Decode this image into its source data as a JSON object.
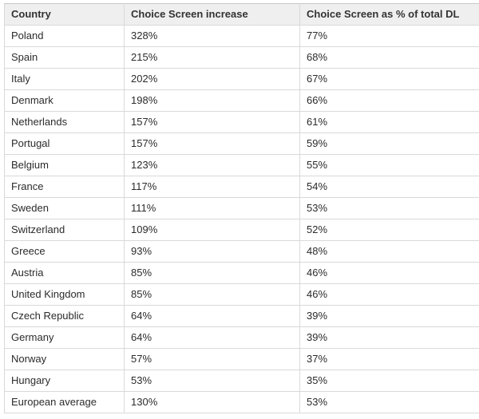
{
  "table": {
    "columns": [
      {
        "label": "Country"
      },
      {
        "label": "Choice Screen increase"
      },
      {
        "label": "Choice Screen as % of total DL"
      }
    ],
    "rows": [
      {
        "country": "Poland",
        "increase": "328%",
        "pct_total": "77%"
      },
      {
        "country": "Spain",
        "increase": "215%",
        "pct_total": "68%"
      },
      {
        "country": "Italy",
        "increase": "202%",
        "pct_total": "67%"
      },
      {
        "country": "Denmark",
        "increase": "198%",
        "pct_total": "66%"
      },
      {
        "country": "Netherlands",
        "increase": "157%",
        "pct_total": "61%"
      },
      {
        "country": "Portugal",
        "increase": "157%",
        "pct_total": "59%"
      },
      {
        "country": "Belgium",
        "increase": "123%",
        "pct_total": "55%"
      },
      {
        "country": "France",
        "increase": "117%",
        "pct_total": "54%"
      },
      {
        "country": "Sweden",
        "increase": "111%",
        "pct_total": "53%"
      },
      {
        "country": "Switzerland",
        "increase": "109%",
        "pct_total": "52%"
      },
      {
        "country": "Greece",
        "increase": "93%",
        "pct_total": "48%"
      },
      {
        "country": "Austria",
        "increase": "85%",
        "pct_total": "46%"
      },
      {
        "country": "United Kingdom",
        "increase": "85%",
        "pct_total": "46%"
      },
      {
        "country": "Czech Republic",
        "increase": "64%",
        "pct_total": "39%"
      },
      {
        "country": "Germany",
        "increase": "64%",
        "pct_total": "39%"
      },
      {
        "country": "Norway",
        "increase": "57%",
        "pct_total": "37%"
      },
      {
        "country": "Hungary",
        "increase": "53%",
        "pct_total": "35%"
      },
      {
        "country": "European average",
        "increase": "130%",
        "pct_total": "53%"
      }
    ]
  },
  "colors": {
    "header_background": "#efefef",
    "border": "#d9d9d9",
    "text": "#2b2b2b"
  },
  "chart_data": {
    "type": "table",
    "title": "",
    "columns": [
      "Country",
      "Choice Screen increase",
      "Choice Screen as % of total DL"
    ],
    "rows": [
      [
        "Poland",
        "328%",
        "77%"
      ],
      [
        "Spain",
        "215%",
        "68%"
      ],
      [
        "Italy",
        "202%",
        "67%"
      ],
      [
        "Denmark",
        "198%",
        "66%"
      ],
      [
        "Netherlands",
        "157%",
        "61%"
      ],
      [
        "Portugal",
        "157%",
        "59%"
      ],
      [
        "Belgium",
        "123%",
        "55%"
      ],
      [
        "France",
        "117%",
        "54%"
      ],
      [
        "Sweden",
        "111%",
        "53%"
      ],
      [
        "Switzerland",
        "109%",
        "52%"
      ],
      [
        "Greece",
        "93%",
        "48%"
      ],
      [
        "Austria",
        "85%",
        "46%"
      ],
      [
        "United Kingdom",
        "85%",
        "46%"
      ],
      [
        "Czech Republic",
        "64%",
        "39%"
      ],
      [
        "Germany",
        "64%",
        "39%"
      ],
      [
        "Norway",
        "57%",
        "37%"
      ],
      [
        "Hungary",
        "53%",
        "35%"
      ],
      [
        "European average",
        "130%",
        "53%"
      ]
    ],
    "increase_values": [
      328,
      215,
      202,
      198,
      157,
      157,
      123,
      117,
      111,
      109,
      93,
      85,
      85,
      64,
      64,
      57,
      53,
      130
    ],
    "pct_of_total_dl_values": [
      77,
      68,
      67,
      66,
      61,
      59,
      55,
      54,
      53,
      52,
      48,
      46,
      46,
      39,
      39,
      37,
      35,
      53
    ]
  }
}
